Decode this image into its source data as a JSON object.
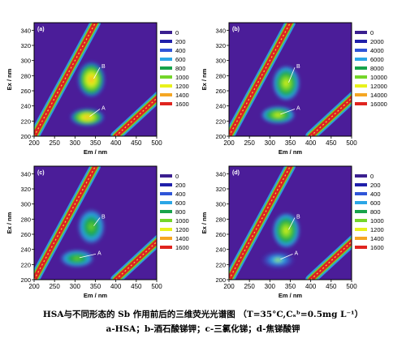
{
  "caption": {
    "line1": "HSA与不同形态的 Sb 作用前后的三维荧光光谱图 （T=35°C,Cₛᵇ=0.5mg L⁻¹）",
    "line2": "a-HSA；b-酒石酸锑钾；c-三氯化锑；d-焦锑酸钾"
  },
  "colors": {
    "background": "#4b1d99",
    "scatter": "#dd2222",
    "legend": [
      "#3a1f8f",
      "#1f1faa",
      "#2f55d8",
      "#2aa6e6",
      "#16a34a",
      "#74d62a",
      "#e8f21c",
      "#f5a623",
      "#e0241f"
    ]
  },
  "chart_data": [
    {
      "type": "heatmap",
      "panel": "(a)",
      "xlabel": "Em / nm",
      "ylabel": "Ex / nm",
      "xlim": [
        200,
        500
      ],
      "ylim": [
        200,
        350
      ],
      "xticks": [
        200,
        250,
        300,
        350,
        400,
        450,
        500
      ],
      "yticks": [
        200,
        220,
        240,
        260,
        280,
        300,
        320,
        340
      ],
      "legend_levels": [
        "0",
        "200",
        "400",
        "600",
        "800",
        "1000",
        "1200",
        "1400",
        "1600"
      ],
      "peaks": [
        {
          "label": "B",
          "em": 340,
          "ex": 275,
          "level": 1400
        },
        {
          "label": "A",
          "em": 330,
          "ex": 225,
          "level": 1600
        }
      ],
      "peak_label_positions": [
        {
          "label": "B",
          "em": 365,
          "ex": 292
        },
        {
          "label": "A",
          "em": 365,
          "ex": 237
        }
      ]
    },
    {
      "type": "heatmap",
      "panel": "(b)",
      "xlabel": "Em / nm",
      "ylabel": "Ex / nm",
      "xlim": [
        200,
        500
      ],
      "ylim": [
        200,
        350
      ],
      "xticks": [
        200,
        250,
        300,
        350,
        400,
        450,
        500
      ],
      "yticks": [
        200,
        220,
        240,
        260,
        280,
        300,
        320,
        340
      ],
      "legend_levels": [
        "0",
        "2000",
        "4000",
        "6000",
        "8000",
        "10000",
        "12000",
        "14000",
        "16000"
      ],
      "peaks": [
        {
          "label": "B",
          "em": 340,
          "ex": 270,
          "level": 10000
        },
        {
          "label": "A",
          "em": 320,
          "ex": 228,
          "level": 10000
        }
      ],
      "peak_label_positions": [
        {
          "label": "B",
          "em": 365,
          "ex": 292
        },
        {
          "label": "A",
          "em": 365,
          "ex": 237
        }
      ]
    },
    {
      "type": "heatmap",
      "panel": "(c)",
      "xlabel": "Em / nm",
      "ylabel": "Ex / nm",
      "xlim": [
        200,
        500
      ],
      "ylim": [
        200,
        350
      ],
      "xticks": [
        200,
        250,
        300,
        350,
        400,
        450,
        500
      ],
      "yticks": [
        200,
        220,
        240,
        260,
        280,
        300,
        320,
        340
      ],
      "legend_levels": [
        "0",
        "200",
        "400",
        "600",
        "800",
        "1000",
        "1200",
        "1400",
        "1600"
      ],
      "peaks": [
        {
          "label": "B",
          "em": 340,
          "ex": 270,
          "level": 600
        },
        {
          "label": "A",
          "em": 305,
          "ex": 228,
          "level": 800
        }
      ],
      "peak_label_positions": [
        {
          "label": "B",
          "em": 365,
          "ex": 283
        },
        {
          "label": "A",
          "em": 355,
          "ex": 235
        }
      ]
    },
    {
      "type": "heatmap",
      "panel": "(d)",
      "xlabel": "Em / nm",
      "ylabel": "Ex / nm",
      "xlim": [
        200,
        500
      ],
      "ylim": [
        200,
        350
      ],
      "xticks": [
        200,
        250,
        300,
        350,
        400,
        450,
        500
      ],
      "yticks": [
        200,
        220,
        240,
        260,
        280,
        300,
        320,
        340
      ],
      "legend_levels": [
        "0",
        "200",
        "400",
        "600",
        "800",
        "1000",
        "1200",
        "1400",
        "1600"
      ],
      "peaks": [
        {
          "label": "B",
          "em": 340,
          "ex": 265,
          "level": 1200
        },
        {
          "label": "A",
          "em": 320,
          "ex": 226,
          "level": 400
        }
      ],
      "peak_label_positions": [
        {
          "label": "B",
          "em": 365,
          "ex": 283
        },
        {
          "label": "A",
          "em": 360,
          "ex": 235
        }
      ]
    }
  ]
}
